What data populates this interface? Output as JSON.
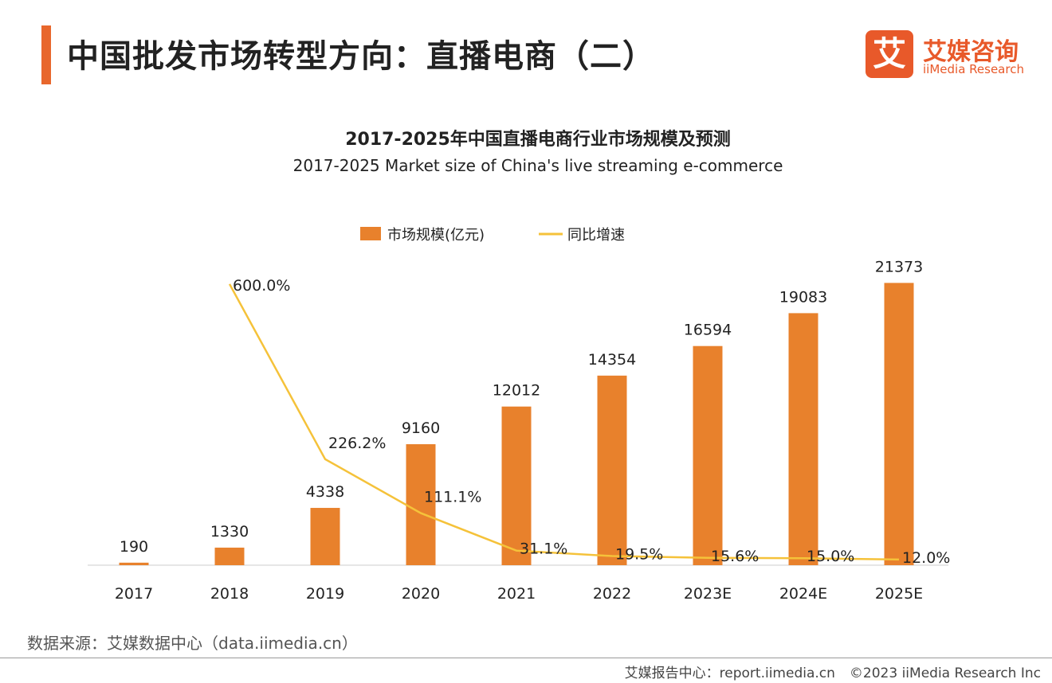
{
  "header": {
    "title": "中国批发市场转型方向：直播电商（二）"
  },
  "logo": {
    "mark": "艾",
    "name_cn": "艾媒咨询",
    "name_en": "iiMedia Research"
  },
  "chart_data": {
    "type": "bar",
    "title": "2017-2025年中国直播电商行业市场规模及预测",
    "subtitle": "2017-2025 Market size of China's live streaming e-commerce",
    "categories": [
      "2017",
      "2018",
      "2019",
      "2020",
      "2021",
      "2022",
      "2023E",
      "2024E",
      "2025E"
    ],
    "series": [
      {
        "name": "市场规模(亿元)",
        "type": "bar",
        "values": [
          190,
          1330,
          4338,
          9160,
          12012,
          14354,
          16594,
          19083,
          21373
        ],
        "labels": [
          "190",
          "1330",
          "4338",
          "9160",
          "12012",
          "14354",
          "16594",
          "19083",
          "21373"
        ],
        "color": "#e8812c"
      },
      {
        "name": "同比增速",
        "type": "line",
        "values": [
          null,
          600.0,
          226.2,
          111.1,
          31.1,
          19.5,
          15.6,
          15.0,
          12.0
        ],
        "labels": [
          "",
          "600.0%",
          "226.2%",
          "111.1%",
          "31.1%",
          "19.5%",
          "15.6%",
          "15.0%",
          "12.0%"
        ],
        "color": "#f5c23a"
      }
    ],
    "ylim": [
      0,
      22000
    ],
    "y2lim": [
      0,
      620
    ],
    "legend": "top-center",
    "grid": false
  },
  "footer": {
    "source": "数据来源：艾媒数据中心（data.iimedia.cn）",
    "report": "艾媒报告中心：report.iimedia.cn",
    "copyright": "©2023  iiMedia Research  Inc"
  }
}
